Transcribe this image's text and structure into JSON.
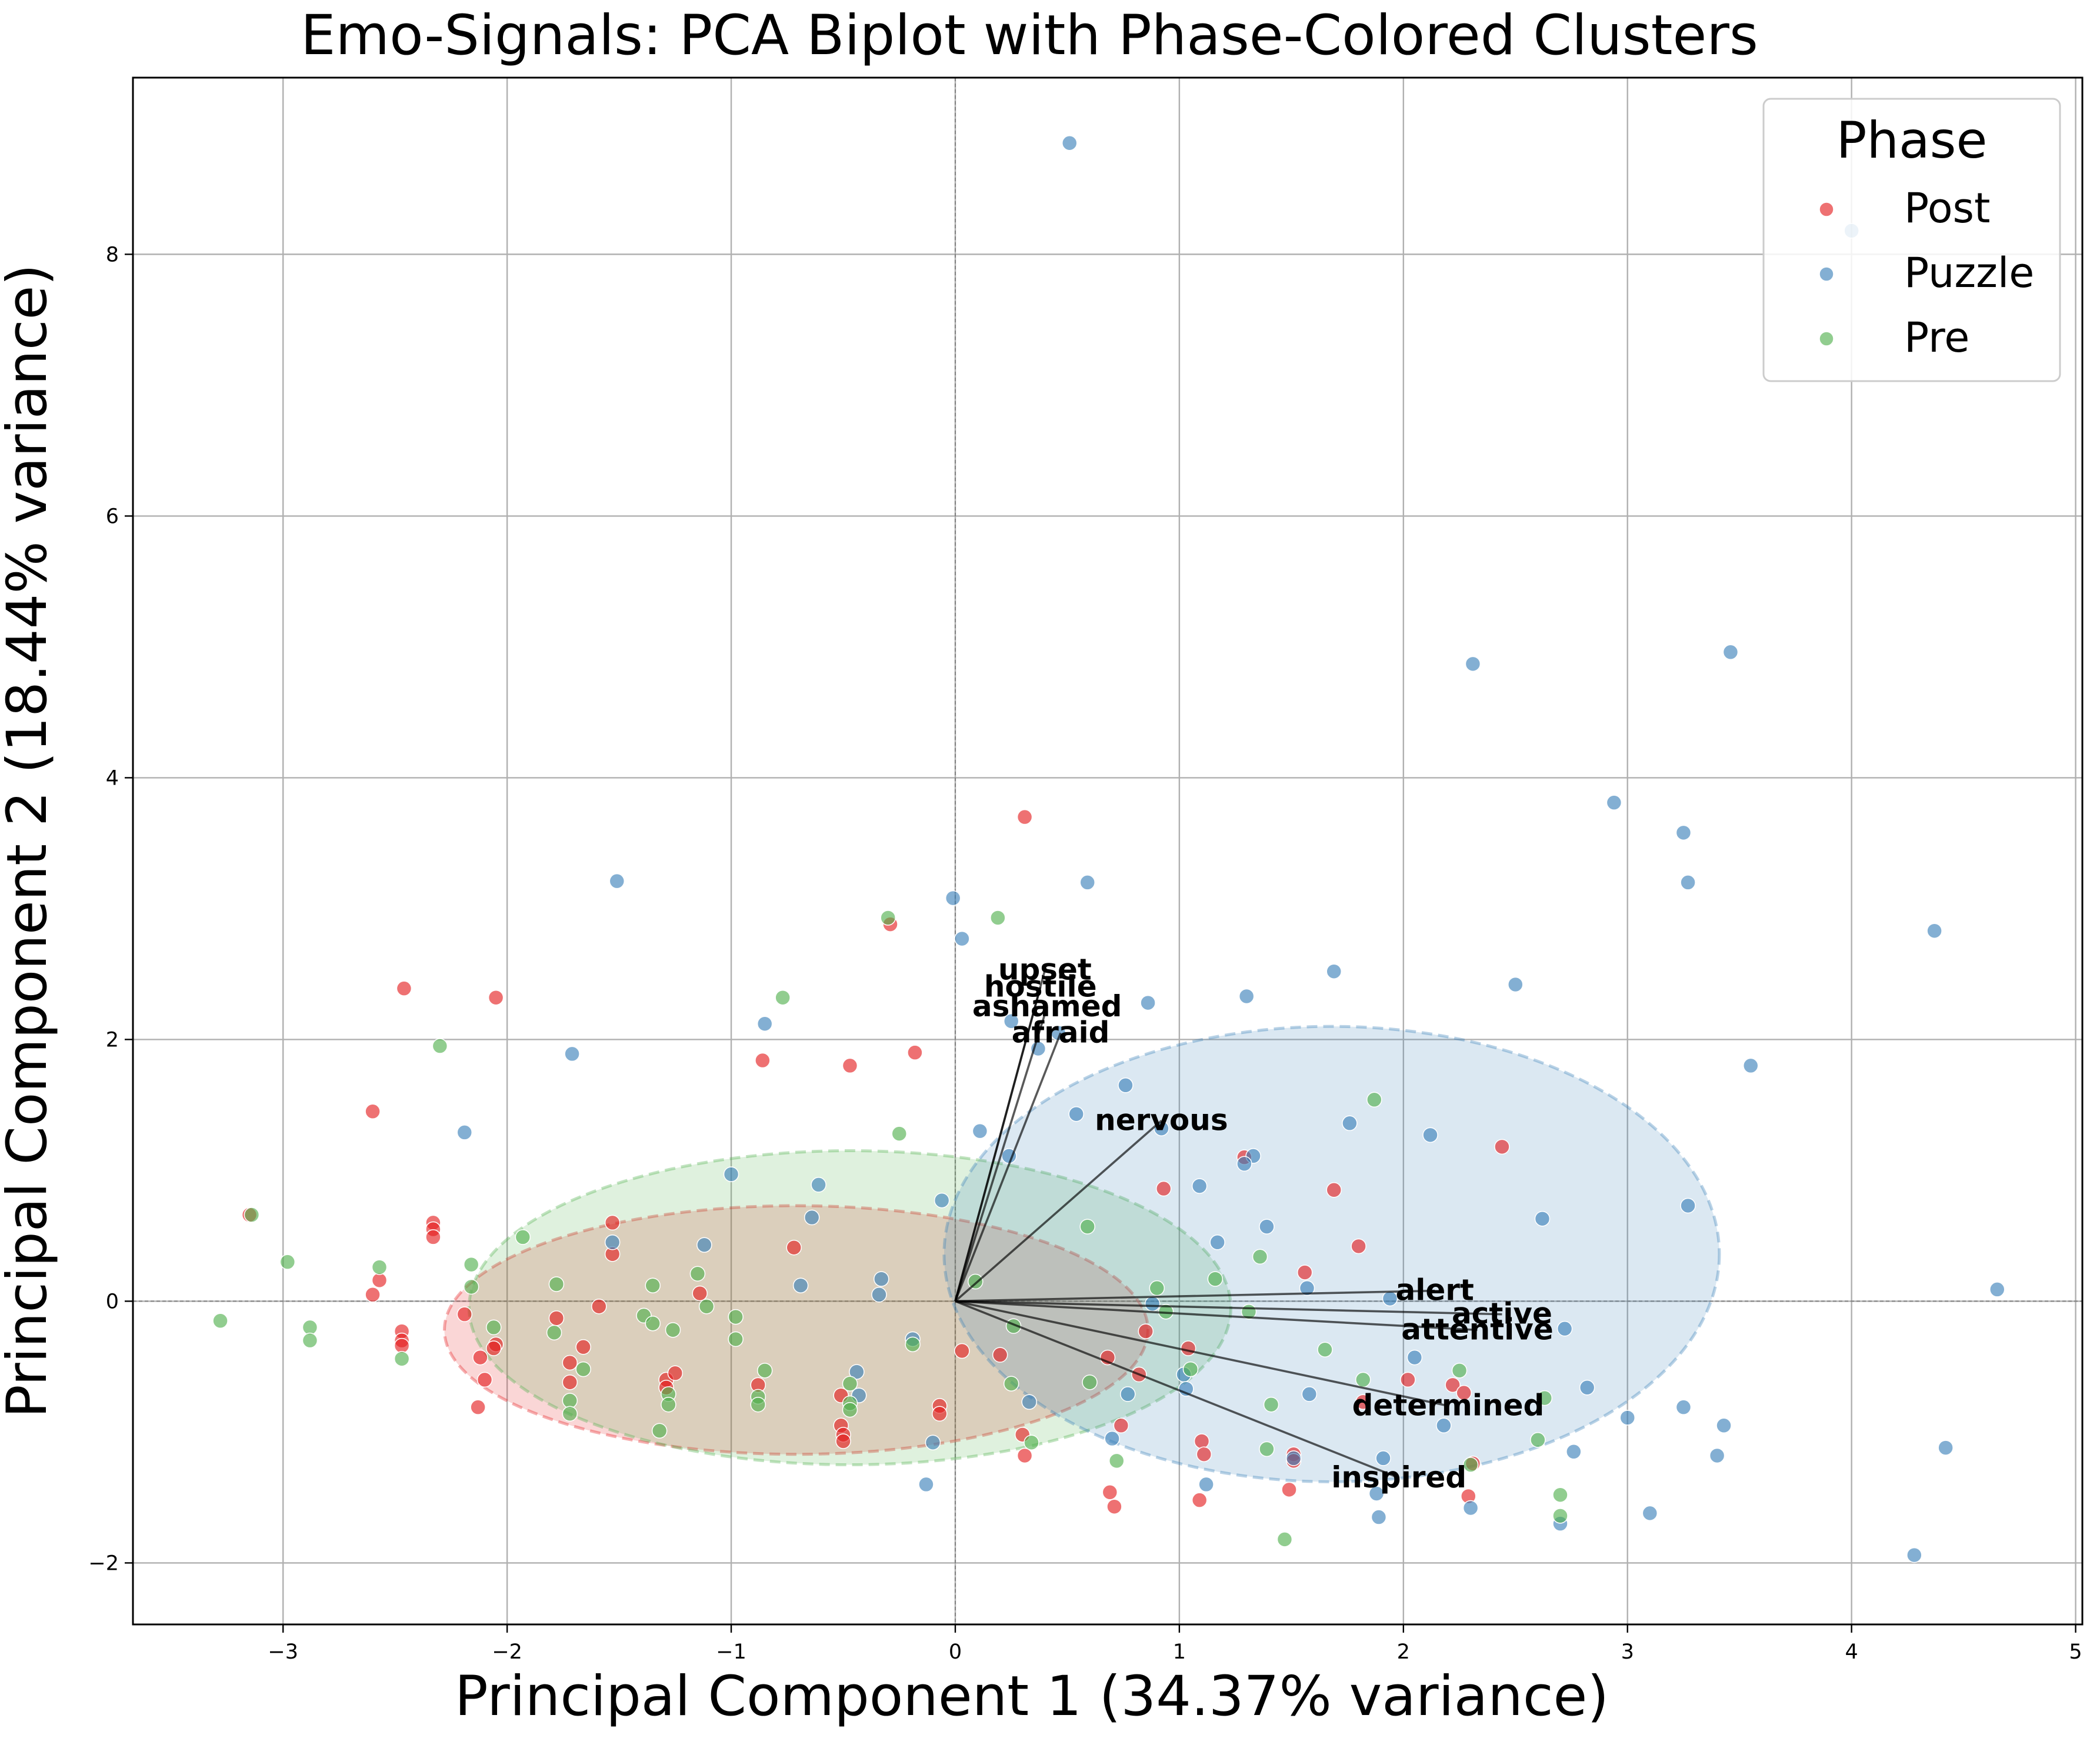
{
  "chart_data": {
    "type": "scatter",
    "title": "Emo-Signals: PCA Biplot with Phase-Colored Clusters",
    "xlabel": "Principal Component 1 (34.37% variance)",
    "ylabel": "Principal Component 2 (18.44% variance)",
    "xlim": [
      -3.67,
      5.03
    ],
    "ylim": [
      -2.47,
      9.35
    ],
    "xticks": [
      -3,
      -2,
      -1,
      0,
      1,
      2,
      3,
      4,
      5
    ],
    "yticks": [
      -2,
      0,
      2,
      4,
      6,
      8
    ],
    "xtick_labels": [
      "−3",
      "−2",
      "−1",
      "0",
      "1",
      "2",
      "3",
      "4",
      "5"
    ],
    "ytick_labels": [
      "−2",
      "0",
      "2",
      "4",
      "6",
      "8"
    ],
    "grid": true,
    "legend": {
      "title": "Phase",
      "placement": "top-right"
    },
    "series": [
      {
        "name": "Post",
        "color": "#e41a1c",
        "points": [
          [
            0.31,
            3.7
          ],
          [
            -0.29,
            2.88
          ],
          [
            -2.46,
            2.39
          ],
          [
            -2.05,
            2.32
          ],
          [
            -0.86,
            1.84
          ],
          [
            -0.47,
            1.8
          ],
          [
            -0.18,
            1.9
          ],
          [
            -2.6,
            1.45
          ],
          [
            -3.15,
            0.66
          ],
          [
            -2.33,
            0.6
          ],
          [
            -2.33,
            0.55
          ],
          [
            -2.33,
            0.49
          ],
          [
            -2.57,
            0.16
          ],
          [
            -2.6,
            0.05
          ],
          [
            -2.19,
            -0.1
          ],
          [
            -2.47,
            -0.23
          ],
          [
            -2.47,
            -0.3
          ],
          [
            -2.47,
            -0.34
          ],
          [
            -2.12,
            -0.43
          ],
          [
            -2.05,
            -0.33
          ],
          [
            -2.06,
            -0.36
          ],
          [
            -2.1,
            -0.6
          ],
          [
            -2.13,
            -0.81
          ],
          [
            -1.78,
            -0.13
          ],
          [
            -1.72,
            -0.47
          ],
          [
            -1.66,
            -0.35
          ],
          [
            -1.72,
            -0.62
          ],
          [
            -1.59,
            -0.04
          ],
          [
            -1.53,
            0.6
          ],
          [
            -1.53,
            0.36
          ],
          [
            -1.29,
            -0.6
          ],
          [
            -1.25,
            -0.55
          ],
          [
            -1.29,
            -0.66
          ],
          [
            -1.14,
            0.06
          ],
          [
            -0.88,
            -0.64
          ],
          [
            -0.72,
            0.41
          ],
          [
            -0.51,
            -0.72
          ],
          [
            -0.51,
            -0.95
          ],
          [
            -0.5,
            -1.02
          ],
          [
            -0.5,
            -1.07
          ],
          [
            -0.07,
            -0.8
          ],
          [
            -0.07,
            -0.86
          ],
          [
            0.03,
            -0.38
          ],
          [
            0.2,
            -0.41
          ],
          [
            0.3,
            -1.02
          ],
          [
            0.31,
            -1.18
          ],
          [
            0.68,
            -0.43
          ],
          [
            0.69,
            -1.46
          ],
          [
            0.71,
            -1.57
          ],
          [
            0.74,
            -0.95
          ],
          [
            0.82,
            -0.56
          ],
          [
            0.85,
            -0.23
          ],
          [
            1.04,
            -0.36
          ],
          [
            1.1,
            -1.07
          ],
          [
            1.11,
            -1.17
          ],
          [
            0.93,
            0.86
          ],
          [
            1.09,
            -1.52
          ],
          [
            1.29,
            1.1
          ],
          [
            1.49,
            -1.44
          ],
          [
            1.51,
            -1.17
          ],
          [
            1.51,
            -1.22
          ],
          [
            1.56,
            0.22
          ],
          [
            1.69,
            0.85
          ],
          [
            1.8,
            0.42
          ],
          [
            1.82,
            -0.77
          ],
          [
            2.02,
            -0.6
          ],
          [
            2.22,
            -0.64
          ],
          [
            2.27,
            -0.7
          ],
          [
            2.29,
            -1.49
          ],
          [
            2.31,
            -1.24
          ],
          [
            2.44,
            1.18
          ]
        ]
      },
      {
        "name": "Puzzle",
        "color": "#377eb8",
        "points": [
          [
            0.51,
            8.85
          ],
          [
            4.0,
            8.18
          ],
          [
            2.31,
            4.87
          ],
          [
            3.46,
            4.96
          ],
          [
            2.94,
            3.81
          ],
          [
            3.25,
            3.58
          ],
          [
            3.27,
            3.2
          ],
          [
            -1.51,
            3.21
          ],
          [
            -0.01,
            3.08
          ],
          [
            0.03,
            2.77
          ],
          [
            0.59,
            3.2
          ],
          [
            4.37,
            2.83
          ],
          [
            1.69,
            2.52
          ],
          [
            1.3,
            2.33
          ],
          [
            2.5,
            2.42
          ],
          [
            0.86,
            2.28
          ],
          [
            -0.85,
            2.12
          ],
          [
            0.25,
            2.14
          ],
          [
            -1.71,
            1.89
          ],
          [
            3.55,
            1.8
          ],
          [
            0.37,
            1.93
          ],
          [
            0.46,
            2.05
          ],
          [
            0.76,
            1.65
          ],
          [
            0.54,
            1.43
          ],
          [
            -2.19,
            1.29
          ],
          [
            0.11,
            1.3
          ],
          [
            0.92,
            1.32
          ],
          [
            1.76,
            1.36
          ],
          [
            2.12,
            1.27
          ],
          [
            0.24,
            1.11
          ],
          [
            1.33,
            1.11
          ],
          [
            1.29,
            1.05
          ],
          [
            1.09,
            0.88
          ],
          [
            -1.0,
            0.97
          ],
          [
            -0.61,
            0.89
          ],
          [
            -0.64,
            0.64
          ],
          [
            1.39,
            0.57
          ],
          [
            2.62,
            0.63
          ],
          [
            3.27,
            0.73
          ],
          [
            -0.06,
            0.77
          ],
          [
            -1.53,
            0.45
          ],
          [
            -1.12,
            0.43
          ],
          [
            1.17,
            0.45
          ],
          [
            1.57,
            0.1
          ],
          [
            1.94,
            0.02
          ],
          [
            -0.33,
            0.17
          ],
          [
            -0.69,
            0.12
          ],
          [
            4.65,
            0.09
          ],
          [
            -0.34,
            0.05
          ],
          [
            0.88,
            -0.02
          ],
          [
            2.72,
            -0.21
          ],
          [
            2.05,
            -0.43
          ],
          [
            2.82,
            -0.66
          ],
          [
            1.58,
            -0.71
          ],
          [
            1.02,
            -0.56
          ],
          [
            1.03,
            -0.67
          ],
          [
            0.77,
            -0.71
          ],
          [
            -0.44,
            -0.54
          ],
          [
            -0.43,
            -0.72
          ],
          [
            0.33,
            -0.77
          ],
          [
            -0.19,
            -0.29
          ],
          [
            3.0,
            -0.89
          ],
          [
            3.25,
            -0.81
          ],
          [
            3.43,
            -0.95
          ],
          [
            2.18,
            -0.95
          ],
          [
            0.7,
            -1.05
          ],
          [
            -0.1,
            -1.08
          ],
          [
            2.76,
            -1.15
          ],
          [
            1.91,
            -1.2
          ],
          [
            1.51,
            -1.2
          ],
          [
            3.4,
            -1.18
          ],
          [
            4.42,
            -1.12
          ],
          [
            1.12,
            -1.4
          ],
          [
            -0.13,
            -1.4
          ],
          [
            1.88,
            -1.47
          ],
          [
            1.89,
            -1.65
          ],
          [
            2.3,
            -1.58
          ],
          [
            3.1,
            -1.62
          ],
          [
            2.7,
            -1.7
          ],
          [
            4.28,
            -1.94
          ]
        ]
      },
      {
        "name": "Pre",
        "color": "#4daf4a",
        "points": [
          [
            -0.3,
            2.93
          ],
          [
            0.19,
            2.93
          ],
          [
            -0.77,
            2.32
          ],
          [
            -2.3,
            1.95
          ],
          [
            -0.25,
            1.28
          ],
          [
            1.87,
            1.54
          ],
          [
            -3.14,
            0.66
          ],
          [
            -2.98,
            0.3
          ],
          [
            -2.57,
            0.26
          ],
          [
            -2.16,
            0.28
          ],
          [
            -1.93,
            0.49
          ],
          [
            -2.16,
            0.11
          ],
          [
            -1.78,
            0.13
          ],
          [
            -1.35,
            0.12
          ],
          [
            -1.15,
            0.21
          ],
          [
            0.59,
            0.57
          ],
          [
            0.09,
            0.15
          ],
          [
            0.9,
            0.1
          ],
          [
            1.16,
            0.17
          ],
          [
            1.36,
            0.34
          ],
          [
            -1.79,
            -0.24
          ],
          [
            -1.66,
            -0.52
          ],
          [
            -1.72,
            -0.76
          ],
          [
            -1.72,
            -0.86
          ],
          [
            -2.06,
            -0.2
          ],
          [
            -2.47,
            -0.44
          ],
          [
            -2.88,
            -0.2
          ],
          [
            -2.88,
            -0.3
          ],
          [
            -3.28,
            -0.15
          ],
          [
            -1.39,
            -0.11
          ],
          [
            -1.35,
            -0.17
          ],
          [
            -1.26,
            -0.22
          ],
          [
            -1.11,
            -0.04
          ],
          [
            -0.98,
            -0.12
          ],
          [
            -0.98,
            -0.29
          ],
          [
            -0.85,
            -0.53
          ],
          [
            -0.88,
            -0.73
          ],
          [
            -0.88,
            -0.79
          ],
          [
            -0.47,
            -0.63
          ],
          [
            -0.47,
            -0.78
          ],
          [
            -0.47,
            -0.83
          ],
          [
            -0.19,
            -0.33
          ],
          [
            -1.32,
            -0.99
          ],
          [
            -1.28,
            -0.71
          ],
          [
            -1.28,
            -0.79
          ],
          [
            0.26,
            -0.19
          ],
          [
            0.25,
            -0.63
          ],
          [
            0.6,
            -0.62
          ],
          [
            0.72,
            -1.22
          ],
          [
            0.34,
            -1.08
          ],
          [
            0.94,
            -0.08
          ],
          [
            1.05,
            -0.52
          ],
          [
            1.31,
            -0.08
          ],
          [
            1.41,
            -0.79
          ],
          [
            1.39,
            -1.13
          ],
          [
            1.47,
            -1.82
          ],
          [
            1.65,
            -0.37
          ],
          [
            1.82,
            -0.6
          ],
          [
            2.25,
            -0.53
          ],
          [
            2.3,
            -1.25
          ],
          [
            2.6,
            -1.06
          ],
          [
            2.63,
            -0.74
          ],
          [
            2.7,
            -1.48
          ],
          [
            2.7,
            -1.64
          ]
        ]
      }
    ],
    "ellipses": [
      {
        "series": "Post",
        "cx": -0.71,
        "cy": -0.22,
        "rx": 1.57,
        "ry": 0.95,
        "color": "#e41a1c"
      },
      {
        "series": "Pre",
        "cx": -0.47,
        "cy": -0.05,
        "rx": 1.7,
        "ry": 1.2,
        "color": "#4daf4a"
      },
      {
        "series": "Puzzle",
        "cx": 1.68,
        "cy": 0.36,
        "rx": 1.73,
        "ry": 1.74,
        "color": "#377eb8"
      }
    ],
    "loadings": [
      {
        "label": "upset",
        "x": 0.4,
        "y": 2.53
      },
      {
        "label": "hostile",
        "x": 0.38,
        "y": 2.4
      },
      {
        "label": "ashamed",
        "x": 0.41,
        "y": 2.25
      },
      {
        "label": "afraid",
        "x": 0.47,
        "y": 2.05
      },
      {
        "label": "nervous",
        "x": 0.92,
        "y": 1.38
      },
      {
        "label": "alert",
        "x": 2.14,
        "y": 0.08
      },
      {
        "label": "active",
        "x": 2.44,
        "y": -0.1
      },
      {
        "label": "attentive",
        "x": 2.33,
        "y": -0.22
      },
      {
        "label": "determined",
        "x": 2.2,
        "y": -0.8
      },
      {
        "label": "inspired",
        "x": 1.98,
        "y": -1.35
      }
    ]
  }
}
